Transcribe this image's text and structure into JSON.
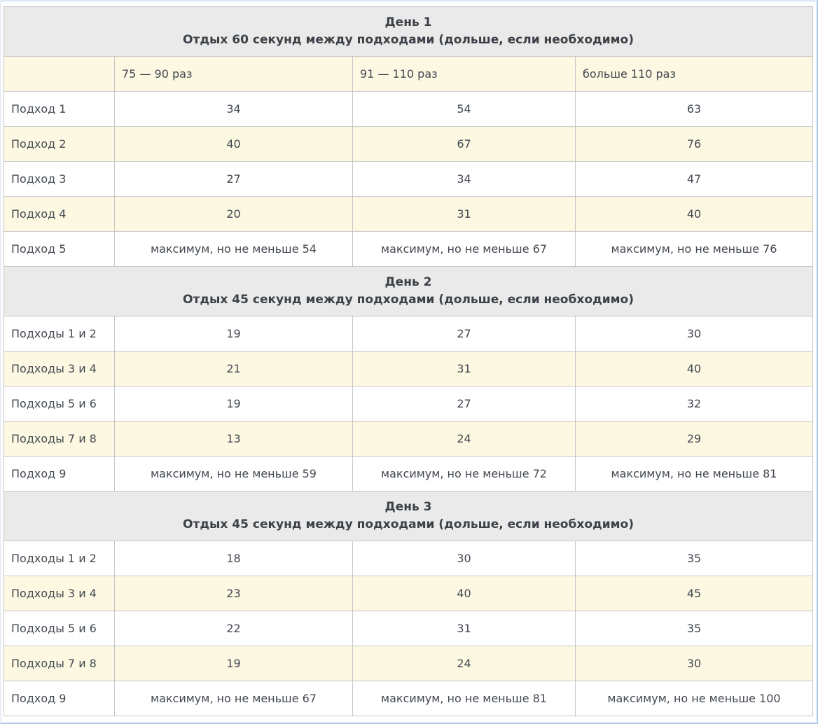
{
  "page": {
    "background_color": "#ffffff",
    "outer_border_color": "#aecae6",
    "section_header_bg": "#eaeaea",
    "stripe_yellow": "#fcf8e2",
    "stripe_white": "#ffffff",
    "grid_border_color": "#c6c6c6",
    "text_color": "#424850"
  },
  "table": {
    "sections": [
      {
        "title": "День 1",
        "subtitle": "Отдых 60 секунд между подходами (дольше, если необходимо)",
        "column_headers": [
          "",
          "75 — 90 раз",
          "91 — 110 раз",
          "больше 110 раз"
        ],
        "rows": [
          {
            "label": "Подход 1",
            "values": [
              "34",
              "54",
              "63"
            ]
          },
          {
            "label": "Подход 2",
            "values": [
              "40",
              "67",
              "76"
            ]
          },
          {
            "label": "Подход 3",
            "values": [
              "27",
              "34",
              "47"
            ]
          },
          {
            "label": "Подход 4",
            "values": [
              "20",
              "31",
              "40"
            ]
          },
          {
            "label": "Подход 5",
            "values": [
              "максимум, но не меньше 54",
              "максимум, но не меньше 67",
              "максимум, но не меньше 76"
            ]
          }
        ]
      },
      {
        "title": "День 2",
        "subtitle": "Отдых 45 секунд между подходами (дольше, если необходимо)",
        "column_headers": null,
        "rows": [
          {
            "label": "Подходы 1 и 2",
            "values": [
              "19",
              "27",
              "30"
            ]
          },
          {
            "label": "Подходы 3 и 4",
            "values": [
              "21",
              "31",
              "40"
            ]
          },
          {
            "label": "Подходы 5 и 6",
            "values": [
              "19",
              "27",
              "32"
            ]
          },
          {
            "label": "Подходы 7 и 8",
            "values": [
              "13",
              "24",
              "29"
            ]
          },
          {
            "label": "Подход 9",
            "values": [
              "максимум, но не меньше 59",
              "максимум, но не меньше 72",
              "максимум, но не меньше 81"
            ]
          }
        ]
      },
      {
        "title": "День 3",
        "subtitle": "Отдых 45 секунд между подходами (дольше, если необходимо)",
        "column_headers": null,
        "rows": [
          {
            "label": "Подходы 1 и 2",
            "values": [
              "18",
              "30",
              "35"
            ]
          },
          {
            "label": "Подходы 3 и 4",
            "values": [
              "23",
              "40",
              "45"
            ]
          },
          {
            "label": "Подходы 5 и 6",
            "values": [
              "22",
              "31",
              "35"
            ]
          },
          {
            "label": "Подходы 7 и 8",
            "values": [
              "19",
              "24",
              "30"
            ]
          },
          {
            "label": "Подход 9",
            "values": [
              "максимум, но не меньше 67",
              "максимум, но не меньше 81",
              "максимум, но не меньше 100"
            ]
          }
        ]
      }
    ]
  }
}
